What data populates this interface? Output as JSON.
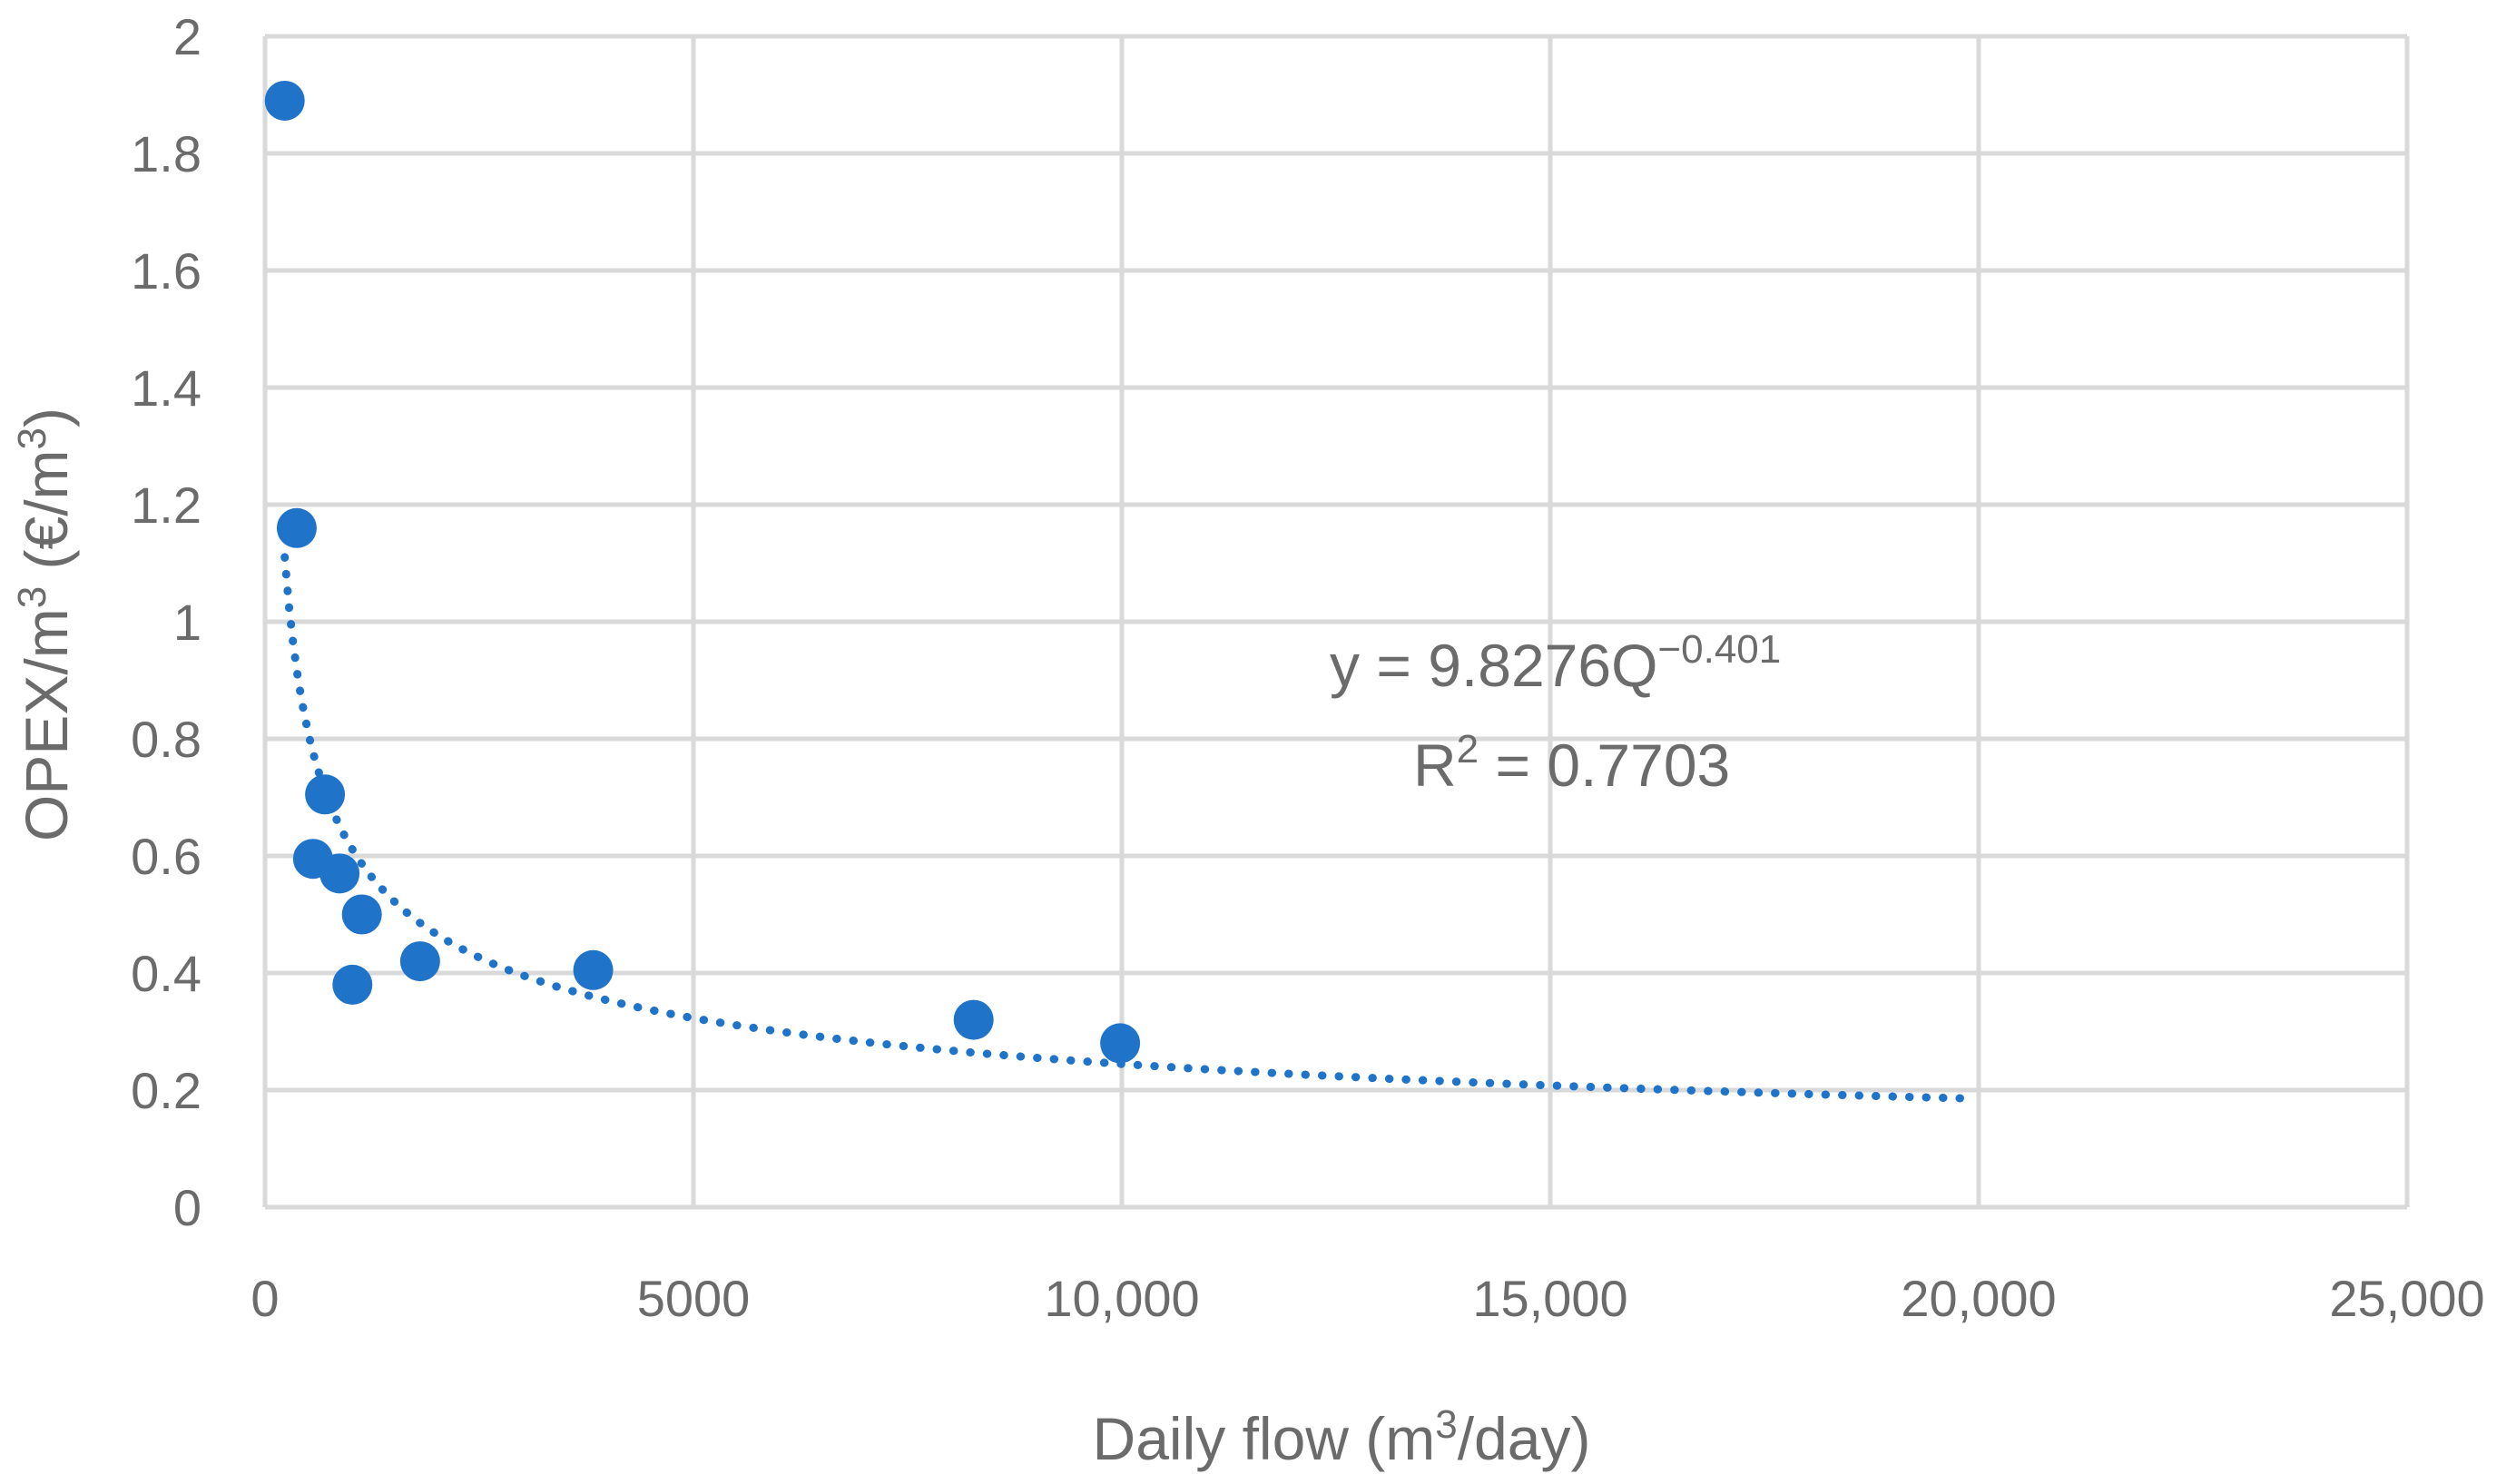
{
  "chart_data": {
    "type": "scatter",
    "xlabel": {
      "prefix": "Daily flow (m",
      "sup": "3",
      "suffix": "/day)"
    },
    "ylabel": {
      "prefix": "OPEX/m",
      "sup1": "3",
      "mid": " (€/m",
      "sup2": "3",
      "suffix": ")"
    },
    "xlim": [
      0,
      25000
    ],
    "ylim": [
      0,
      2
    ],
    "grid": true,
    "x_ticks": [
      0,
      5000,
      10000,
      15000,
      20000,
      25000
    ],
    "x_tick_labels": [
      "0",
      "5000",
      "10,000",
      "15,000",
      "20,000",
      "25,000"
    ],
    "y_ticks": [
      0,
      0.2,
      0.4,
      0.6,
      0.8,
      1,
      1.2,
      1.4,
      1.6,
      1.8,
      2
    ],
    "y_tick_labels": [
      "0",
      "0.2",
      "0.4",
      "0.6",
      "0.8",
      "1",
      "1.2",
      "1.4",
      "1.6",
      "1.8",
      "2"
    ],
    "points": [
      {
        "x": 230,
        "y": 1.89
      },
      {
        "x": 370,
        "y": 1.16
      },
      {
        "x": 560,
        "y": 0.595
      },
      {
        "x": 700,
        "y": 0.705
      },
      {
        "x": 870,
        "y": 0.57
      },
      {
        "x": 1020,
        "y": 0.38
      },
      {
        "x": 1130,
        "y": 0.5
      },
      {
        "x": 1810,
        "y": 0.42
      },
      {
        "x": 3830,
        "y": 0.405
      },
      {
        "x": 8270,
        "y": 0.32
      },
      {
        "x": 9980,
        "y": 0.28
      }
    ],
    "trendline": {
      "type": "power",
      "coefficient": 9.8276,
      "exponent": -0.401,
      "x_range": [
        230,
        19850
      ],
      "style": "dotted"
    },
    "equation": {
      "lhs": "y = 9.8276Q",
      "exp": "−0.401"
    },
    "r_squared": {
      "prefix": "R",
      "sup": "2",
      "value": " = 0.7703"
    },
    "colors": {
      "series": "#1f73c9",
      "grid": "#d9d9d9",
      "text": "#6b6b6b"
    }
  }
}
